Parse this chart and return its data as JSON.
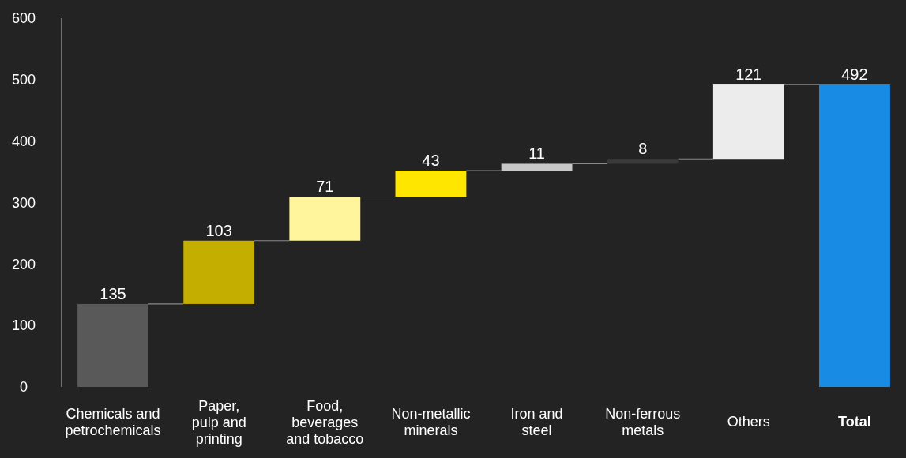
{
  "chart_data": {
    "type": "bar",
    "categories": [
      "Chemicals and\npetrochemicals",
      "Paper,\npulp and\nprinting",
      "Food,\nbeverages\nand tobacco",
      "Non-metallic\nminerals",
      "Iron and\nsteel",
      "Non-ferrous\nmetals",
      "Others",
      "Total"
    ],
    "values": [
      135,
      103,
      71,
      43,
      11,
      8,
      121,
      492
    ],
    "base": [
      0,
      135,
      238,
      309,
      352,
      363,
      371,
      0
    ],
    "colors": [
      "#595959",
      "#c4ae00",
      "#fff59d",
      "#ffe600",
      "#c8c8c8",
      "#3a3a3a",
      "#ececec",
      "#188ce5"
    ],
    "ylim": [
      0,
      600
    ],
    "yticks": [
      0,
      100,
      200,
      300,
      400,
      500,
      600
    ],
    "data_labels": true,
    "grid": false
  }
}
